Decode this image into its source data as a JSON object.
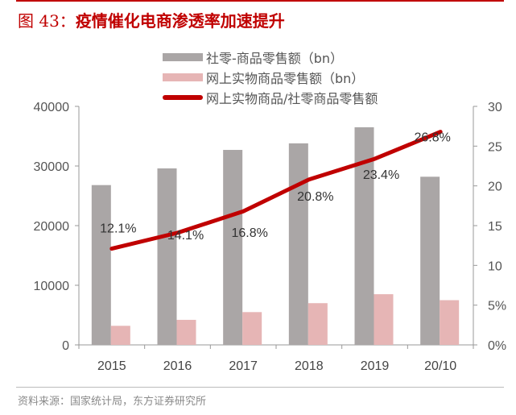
{
  "title": {
    "prefix": "图 43：",
    "text": "疫情催化电商渗透率加速提升"
  },
  "source": "资料来源：国家统计局，东方证券研究所",
  "chart_data": {
    "type": "bar+line",
    "title": "疫情催化电商渗透率加速提升",
    "categories": [
      "2015",
      "2016",
      "2017",
      "2018",
      "2019",
      "20/10"
    ],
    "series": [
      {
        "name": "社零-商品零售额（bn）",
        "type": "bar",
        "axis": "left",
        "color": "#aaa6a6",
        "values": [
          26800,
          29600,
          32700,
          33800,
          36500,
          28200
        ]
      },
      {
        "name": "网上实物商品零售额（bn）",
        "type": "bar",
        "axis": "left",
        "color": "#e6b5b5",
        "values": [
          3200,
          4200,
          5500,
          7000,
          8500,
          7500
        ]
      },
      {
        "name": "网上实物商品/社零商品零售额",
        "type": "line",
        "axis": "right",
        "color": "#c00000",
        "values": [
          12.1,
          14.1,
          16.8,
          20.8,
          23.4,
          26.8
        ],
        "labels": [
          "12.1%",
          "14.1%",
          "16.8%",
          "20.8%",
          "23.4%",
          "26.8%"
        ]
      }
    ],
    "y_left": {
      "range": [
        0,
        40000
      ],
      "ticks": [
        "0",
        "10000",
        "20000",
        "30000",
        "40000"
      ]
    },
    "y_right": {
      "range": [
        0,
        30
      ],
      "ticks": [
        "0%",
        "5%",
        "10",
        "15",
        "20",
        "25",
        "30"
      ]
    },
    "grid": false,
    "legend": "top"
  }
}
